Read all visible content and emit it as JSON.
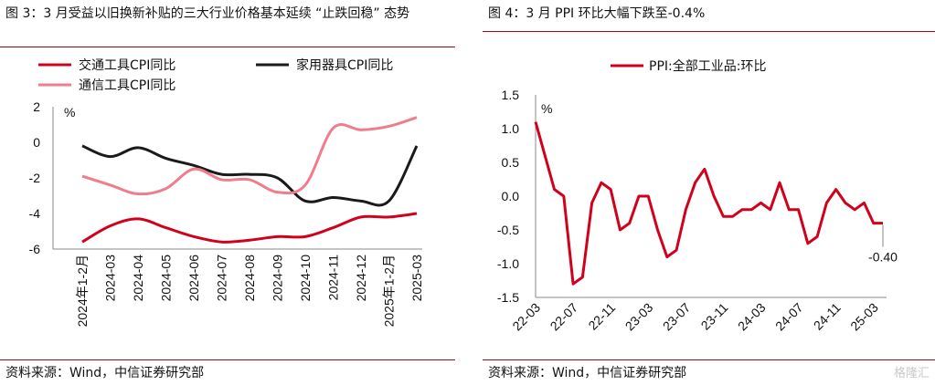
{
  "left_panel": {
    "title": "图 3：3 月受益以旧换新补贴的三大行业价格基本延续 “止跌回稳” 态势",
    "source": "资料来源：Wind，中信证券研究部"
  },
  "right_panel": {
    "title": "图 4：3 月 PPI 环比大幅下跌至-0.4%",
    "source": "资料来源：Wind，中信证券研究部"
  },
  "watermark": "格隆汇",
  "chart_data": [
    {
      "type": "line",
      "unit_label": "%",
      "categories": [
        "2024年1-2月",
        "2024-03",
        "2024-04",
        "2024-05",
        "2024-06",
        "2024-07",
        "2024-08",
        "2024-09",
        "2024-10",
        "2024-11",
        "2024-12",
        "2025年1-2月",
        "2025-03"
      ],
      "y_ticks": [
        "2",
        "0",
        "-2",
        "-4",
        "-6"
      ],
      "ylim": [
        -6,
        2
      ],
      "legend_position": "top",
      "series": [
        {
          "name": "交通工具CPI同比",
          "color": "#d0021b",
          "values": [
            -5.6,
            -4.7,
            -4.3,
            -4.8,
            -5.3,
            -5.6,
            -5.5,
            -5.3,
            -5.3,
            -4.8,
            -4.2,
            -4.2,
            -4.0
          ]
        },
        {
          "name": "家用器具CPI同比",
          "color": "#1a1a1a",
          "values": [
            -0.2,
            -0.8,
            -0.3,
            -0.9,
            -1.3,
            -1.8,
            -1.8,
            -2.0,
            -3.3,
            -3.1,
            -3.3,
            -3.3,
            -0.2
          ]
        },
        {
          "name": "通信工具CPI同比",
          "color": "#f07c8c",
          "values": [
            -1.9,
            -2.4,
            -2.9,
            -2.6,
            -1.5,
            -2.1,
            -2.1,
            -2.8,
            -2.4,
            0.8,
            0.7,
            0.9,
            1.4
          ]
        }
      ]
    },
    {
      "type": "line",
      "unit_label": "%",
      "x": [
        0,
        1,
        2,
        3,
        4,
        5,
        6,
        7,
        8,
        9,
        10,
        11,
        12,
        13,
        14,
        15,
        16,
        17,
        18,
        19,
        20,
        21,
        22,
        23,
        24,
        25,
        26,
        27,
        28,
        29,
        30,
        31,
        32,
        33,
        34,
        35,
        36,
        37
      ],
      "categories": [
        "22-03",
        "22-07",
        "22-11",
        "23-03",
        "23-07",
        "23-11",
        "24-03",
        "24-07",
        "24-11",
        "25-03"
      ],
      "category_positions": [
        0,
        4,
        8,
        12,
        16,
        20,
        24,
        28,
        32,
        36
      ],
      "y_ticks": [
        "1.5",
        "1.0",
        "0.5",
        "0.0",
        "-0.5",
        "-1.0",
        "-1.5"
      ],
      "ylim": [
        -1.5,
        1.5
      ],
      "legend_position": "top",
      "annotation": "-0.40",
      "series": [
        {
          "name": "PPI:全部工业品:环比",
          "color": "#d0021b",
          "values": [
            1.1,
            0.6,
            0.1,
            0.0,
            -1.3,
            -1.2,
            -0.1,
            0.2,
            0.1,
            -0.5,
            -0.4,
            0.0,
            0.0,
            -0.5,
            -0.9,
            -0.8,
            -0.2,
            0.2,
            0.4,
            0.0,
            -0.3,
            -0.3,
            -0.2,
            -0.2,
            -0.1,
            -0.2,
            0.2,
            -0.2,
            -0.2,
            -0.7,
            -0.6,
            -0.1,
            0.1,
            -0.1,
            -0.2,
            -0.1,
            -0.4,
            -0.4
          ]
        }
      ]
    }
  ]
}
